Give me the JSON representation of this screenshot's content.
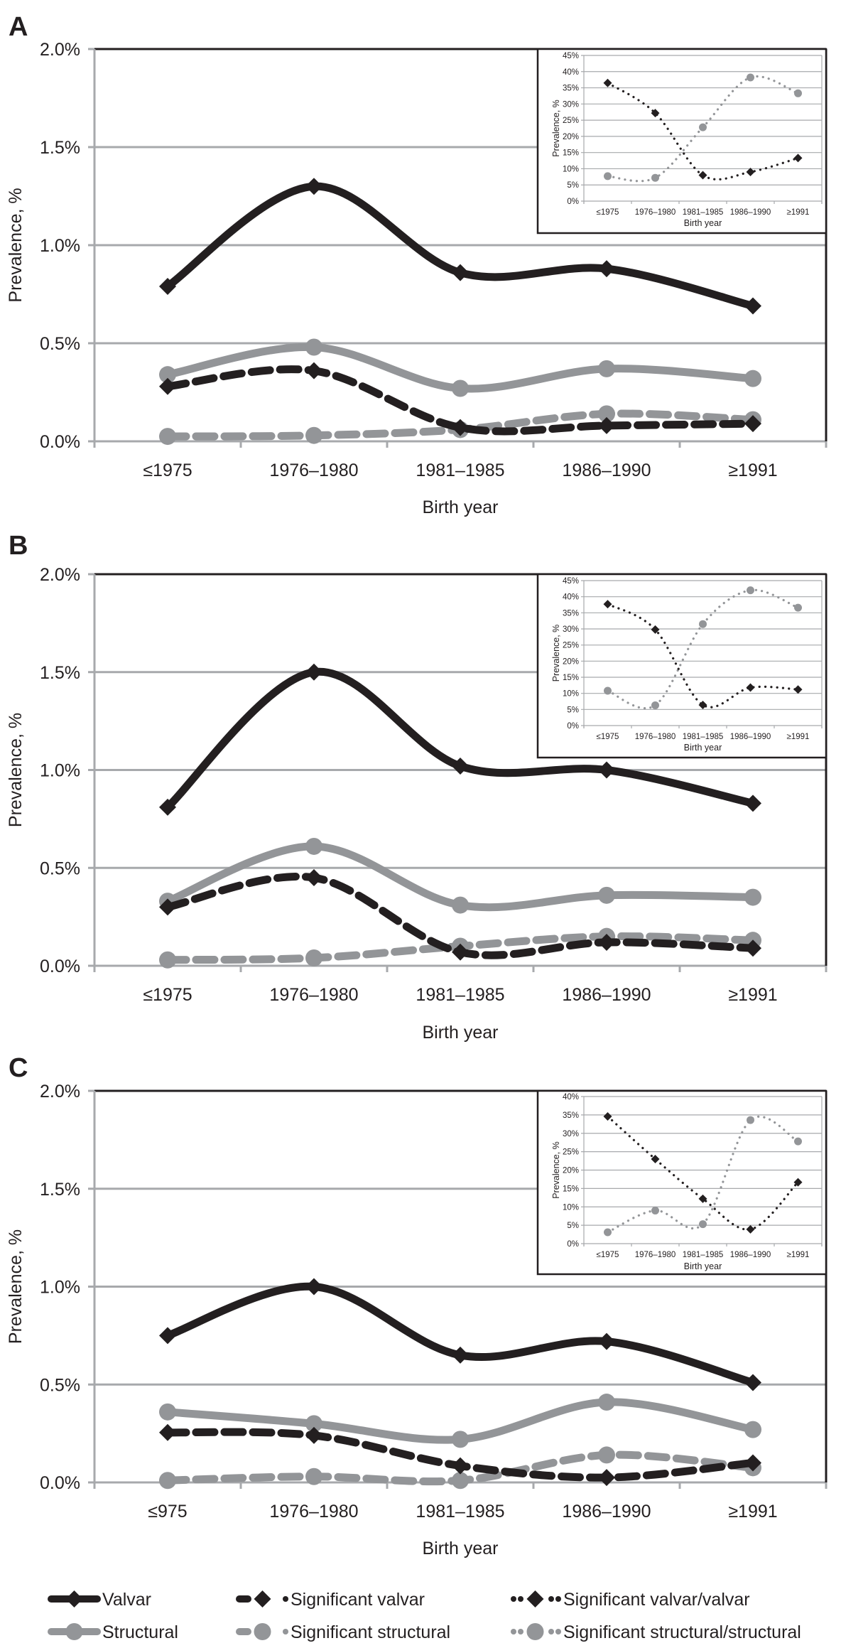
{
  "figure": {
    "panels": [
      "A",
      "B",
      "C"
    ],
    "colors": {
      "black": "#231f20",
      "gray": "#939598",
      "grid": "#a7a9ac",
      "frame": "#231f20"
    }
  },
  "legend": [
    {
      "label": "Valvar",
      "color": "#231f20",
      "style": "solid",
      "marker": "diamond"
    },
    {
      "label": "Significant valvar",
      "color": "#231f20",
      "style": "dashed",
      "marker": "diamond"
    },
    {
      "label": "Significant valvar/valvar",
      "color": "#231f20",
      "style": "dotted",
      "marker": "diamond"
    },
    {
      "label": "Structural",
      "color": "#939598",
      "style": "solid",
      "marker": "circle"
    },
    {
      "label": "Significant structural",
      "color": "#939598",
      "style": "dashed",
      "marker": "circle"
    },
    {
      "label": "Significant structural/structural",
      "color": "#939598",
      "style": "dotted",
      "marker": "circle"
    }
  ],
  "chart_data": [
    {
      "panel": "A",
      "type": "line",
      "xlabel": "Birth year",
      "ylabel": "Prevalence, %",
      "categories": [
        "≤1975",
        "1976–1980",
        "1981–1985",
        "1986–1990",
        "≥1991"
      ],
      "ylim": [
        0,
        2.0
      ],
      "yticks": [
        "0.0%",
        "0.5%",
        "1.0%",
        "1.5%",
        "2.0%"
      ],
      "yticks_values": [
        0,
        0.5,
        1.0,
        1.5,
        2.0
      ],
      "grid": true,
      "series": [
        {
          "name": "Valvar",
          "values": [
            0.79,
            1.3,
            0.86,
            0.88,
            0.69
          ]
        },
        {
          "name": "Significant valvar",
          "values": [
            0.28,
            0.36,
            0.07,
            0.08,
            0.09
          ]
        },
        {
          "name": "Structural",
          "values": [
            0.34,
            0.48,
            0.27,
            0.37,
            0.32
          ]
        },
        {
          "name": "Significant structural",
          "values": [
            0.025,
            0.03,
            0.06,
            0.14,
            0.11
          ]
        }
      ],
      "inset": {
        "type": "line",
        "xlabel": "Birth year",
        "ylabel": "Prevalence, %",
        "categories": [
          "≤1975",
          "1976–1980",
          "1981–1985",
          "1986–1990",
          "≥1991"
        ],
        "ylim": [
          0,
          45
        ],
        "yticks": [
          "0%",
          "5%",
          "10%",
          "15%",
          "20%",
          "25%",
          "30%",
          "35%",
          "40%",
          "45%"
        ],
        "yticks_values": [
          0,
          5,
          10,
          15,
          20,
          25,
          30,
          35,
          40,
          45
        ],
        "series": [
          {
            "name": "Significant valvar/valvar",
            "values": [
              36.5,
              27.2,
              8.0,
              9.0,
              13.3
            ]
          },
          {
            "name": "Significant structural/structural",
            "values": [
              7.7,
              7.2,
              22.8,
              38.2,
              33.3
            ]
          }
        ]
      }
    },
    {
      "panel": "B",
      "type": "line",
      "xlabel": "Birth year",
      "ylabel": "Prevalence, %",
      "categories": [
        "≤1975",
        "1976–1980",
        "1981–1985",
        "1986–1990",
        "≥1991"
      ],
      "ylim": [
        0,
        2.0
      ],
      "yticks": [
        "0.0%",
        "0.5%",
        "1.0%",
        "1.5%",
        "2.0%"
      ],
      "yticks_values": [
        0,
        0.5,
        1.0,
        1.5,
        2.0
      ],
      "grid": true,
      "series": [
        {
          "name": "Valvar",
          "values": [
            0.81,
            1.5,
            1.02,
            1.0,
            0.83
          ]
        },
        {
          "name": "Significant valvar",
          "values": [
            0.3,
            0.45,
            0.07,
            0.12,
            0.09
          ]
        },
        {
          "name": "Structural",
          "values": [
            0.33,
            0.61,
            0.31,
            0.36,
            0.35
          ]
        },
        {
          "name": "Significant structural",
          "values": [
            0.03,
            0.04,
            0.1,
            0.15,
            0.13
          ]
        }
      ],
      "inset": {
        "type": "line",
        "xlabel": "Birth year",
        "ylabel": "Prevalence, %",
        "categories": [
          "≤1975",
          "1976–1980",
          "1981–1985",
          "1986–1990",
          "≥1991"
        ],
        "ylim": [
          0,
          45
        ],
        "yticks": [
          "0%",
          "5%",
          "10%",
          "15%",
          "20%",
          "25%",
          "30%",
          "35%",
          "40%",
          "45%"
        ],
        "yticks_values": [
          0,
          5,
          10,
          15,
          20,
          25,
          30,
          35,
          40,
          45
        ],
        "series": [
          {
            "name": "Significant valvar/valvar",
            "values": [
              37.7,
              29.8,
              6.4,
              11.8,
              11.2
            ]
          },
          {
            "name": "Significant structural/structural",
            "values": [
              10.8,
              6.3,
              31.5,
              42.0,
              36.6
            ]
          }
        ]
      }
    },
    {
      "panel": "C",
      "type": "line",
      "xlabel": "Birth year",
      "ylabel": "Prevalence, %",
      "categories": [
        "≤975",
        "1976–1980",
        "1981–1985",
        "1986–1990",
        "≥1991"
      ],
      "ylim": [
        0,
        2.0
      ],
      "yticks": [
        "0.0%",
        "0.5%",
        "1.0%",
        "1.5%",
        "2.0%"
      ],
      "yticks_values": [
        0,
        0.5,
        1.0,
        1.5,
        2.0
      ],
      "grid": true,
      "series": [
        {
          "name": "Valvar",
          "values": [
            0.75,
            1.0,
            0.65,
            0.72,
            0.51
          ]
        },
        {
          "name": "Significant valvar",
          "values": [
            0.255,
            0.24,
            0.085,
            0.025,
            0.1
          ]
        },
        {
          "name": "Structural",
          "values": [
            0.36,
            0.3,
            0.22,
            0.41,
            0.27
          ]
        },
        {
          "name": "Significant structural",
          "values": [
            0.01,
            0.03,
            0.01,
            0.14,
            0.075
          ]
        }
      ],
      "inset": {
        "type": "line",
        "xlabel": "Birth year",
        "ylabel": "Prevalence, %",
        "categories": [
          "≤1975",
          "1976–1980",
          "1981–1985",
          "1986–1990",
          "≥1991"
        ],
        "ylim": [
          0,
          40
        ],
        "yticks": [
          "0%",
          "5%",
          "10%",
          "15%",
          "20%",
          "25%",
          "30%",
          "35%",
          "40%"
        ],
        "yticks_values": [
          0,
          5,
          10,
          15,
          20,
          25,
          30,
          35,
          40
        ],
        "series": [
          {
            "name": "Significant valvar/valvar",
            "values": [
              34.6,
              23.0,
              12.2,
              3.9,
              16.7
            ]
          },
          {
            "name": "Significant structural/structural",
            "values": [
              3.1,
              9.0,
              5.3,
              33.6,
              27.8
            ]
          }
        ]
      }
    }
  ]
}
